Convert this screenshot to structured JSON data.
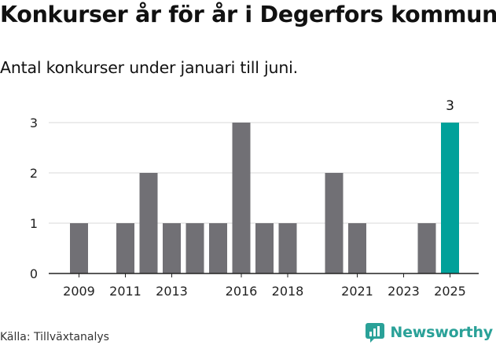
{
  "title": "Konkurser år för år i Degerfors kommun",
  "subtitle": "Antal konkurser under januari till juni.",
  "source": "Källa: Tillväxtanalys",
  "brand": "Newsworthy",
  "colors": {
    "bar": "#717075",
    "highlight": "#00a19a",
    "grid": "#d9d9d9",
    "axis": "#222222",
    "brand": "#2aa198"
  },
  "chart_data": {
    "type": "bar",
    "categories": [
      "2009",
      "2010",
      "2011",
      "2012",
      "2013",
      "2014",
      "2015",
      "2016",
      "2017",
      "2018",
      "2019",
      "2020",
      "2021",
      "2022",
      "2023",
      "2024",
      "2025"
    ],
    "values": [
      1,
      0,
      1,
      2,
      1,
      1,
      1,
      3,
      1,
      1,
      0,
      2,
      1,
      0,
      0,
      1,
      3
    ],
    "x_tick_labels": [
      "2009",
      "2011",
      "2013",
      "2016",
      "2018",
      "2021",
      "2023",
      "2025"
    ],
    "y_ticks": [
      0,
      1,
      2,
      3
    ],
    "ylim": [
      0,
      3
    ],
    "highlight_category": "2025",
    "data_labels": [
      {
        "category": "2025",
        "label": "3"
      }
    ],
    "grid": true
  }
}
